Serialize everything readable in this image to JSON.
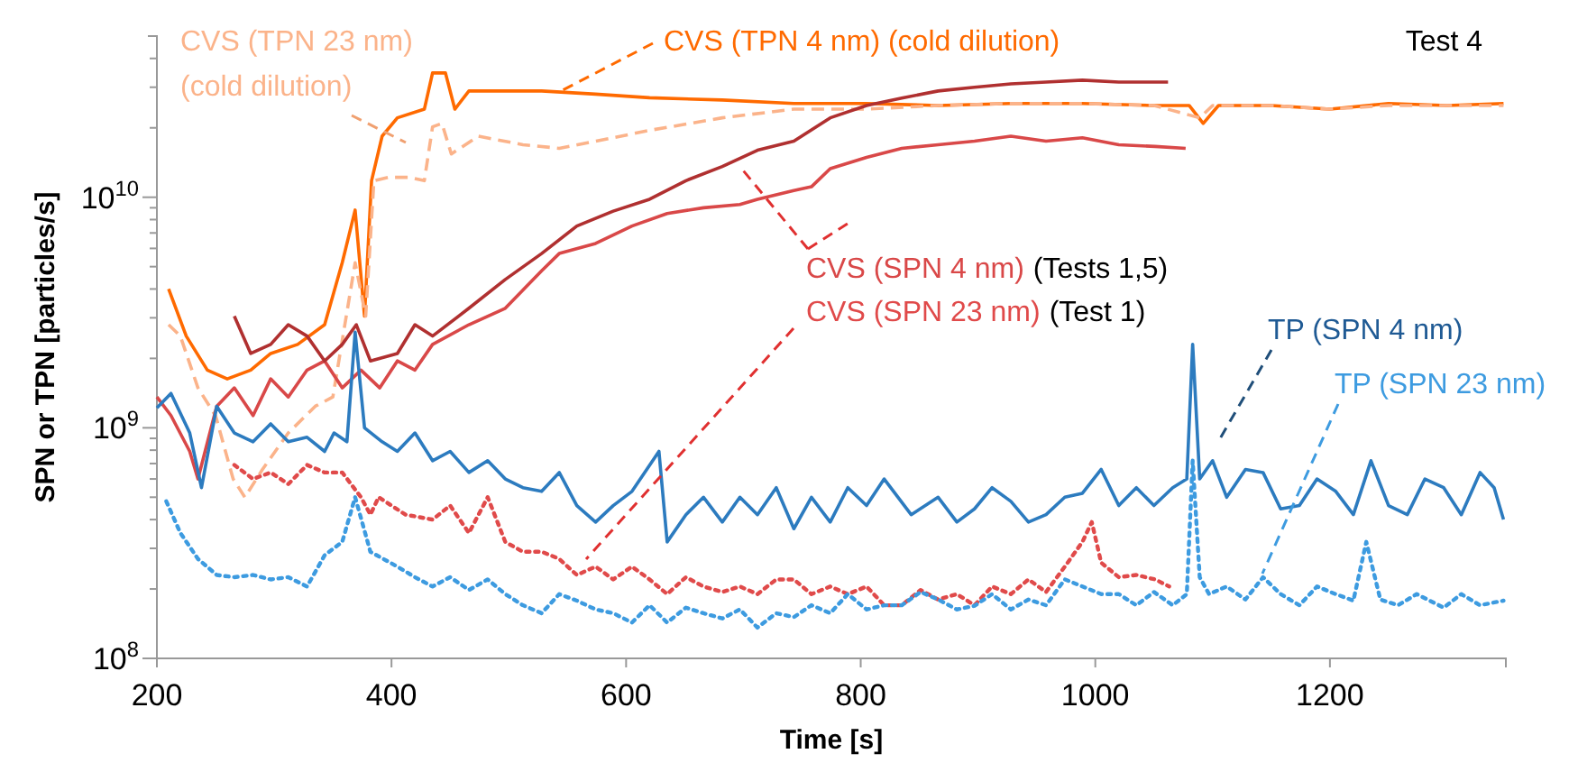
{
  "chart_data": {
    "type": "line",
    "xlabel": "Time [s]",
    "ylabel": "SPN or TPN [particles/s]",
    "log": "y",
    "xlim": [
      200,
      1350
    ],
    "xticks": [
      200,
      400,
      600,
      800,
      1000,
      1200
    ],
    "ylim": [
      100000000.0,
      50000000000.0
    ],
    "yticks": [
      {
        "value": 100000000.0,
        "label": "10$^{8}$"
      },
      {
        "value": 200000000.0,
        "label": null
      },
      {
        "value": 300000000.0,
        "label": null
      },
      {
        "value": 400000000.0,
        "label": null
      },
      {
        "value": 500000000.0,
        "label": null
      },
      {
        "value": 600000000.0,
        "label": null
      },
      {
        "value": 700000000.0,
        "label": null
      },
      {
        "value": 800000000.0,
        "label": null
      },
      {
        "value": 900000000.0,
        "label": null
      },
      {
        "value": 1000000000.0,
        "label": "10$^{9}$"
      },
      {
        "value": 2000000000.0,
        "label": null
      },
      {
        "value": 3000000000.0,
        "label": null
      },
      {
        "value": 4000000000.0,
        "label": null
      },
      {
        "value": 5000000000.0,
        "label": null
      },
      {
        "value": 6000000000.0,
        "label": null
      },
      {
        "value": 7000000000.0,
        "label": null
      },
      {
        "value": 8000000000.0,
        "label": null
      },
      {
        "value": 9000000000.0,
        "label": null
      },
      {
        "value": 10000000000.0,
        "label": "10$^{10}$"
      },
      {
        "value": 20000000000.0,
        "label": null
      },
      {
        "value": 30000000000.0,
        "label": null
      },
      {
        "value": 40000000000.0,
        "label": null
      },
      {
        "value": 50000000000.0,
        "label": null
      }
    ],
    "annotations": [
      "Test 4",
      "(Tests 1,5)",
      "(Test 1)"
    ],
    "series": [
      {
        "name": "CVS (TPN 4 nm) (cold dilution)",
        "color": "#ff6a00",
        "line_style": "solid",
        "x": [
          210,
          225,
          243,
          260,
          280,
          297,
          320,
          343,
          358,
          369,
          377,
          383,
          392,
          405,
          428,
          435,
          446,
          454,
          466,
          500,
          528,
          574,
          620,
          682,
          743,
          805,
          866,
          928,
          989,
          1050,
          1080,
          1092,
          1105,
          1150,
          1200,
          1250,
          1300,
          1348
        ],
        "values": [
          4000000000.0,
          2500000000.0,
          1780000000.0,
          1630000000.0,
          1780000000.0,
          2100000000.0,
          2300000000.0,
          2800000000.0,
          5200000000.0,
          8800000000.0,
          3050000000.0,
          11800000000.0,
          18400000000.0,
          22100000000.0,
          24100000000.0,
          34600000000.0,
          34600000000.0,
          24100000000.0,
          28900000000.0,
          28900000000.0,
          28900000000.0,
          28000000000.0,
          27000000000.0,
          26400000000.0,
          25500000000.0,
          25500000000.0,
          25000000000.0,
          25500000000.0,
          25500000000.0,
          25000000000.0,
          25000000000.0,
          20900000000.0,
          25000000000.0,
          25000000000.0,
          24100000000.0,
          25500000000.0,
          25000000000.0,
          25500000000.0
        ]
      },
      {
        "name": "CVS (TPN 23 nm) (cold dilution)",
        "color": "#fbb38a",
        "line_style": "dashed",
        "x": [
          210,
          220,
          235,
          250,
          265,
          275,
          290,
          312,
          335,
          350,
          369,
          378,
          385,
          397,
          415,
          428,
          435,
          443,
          451,
          474,
          512,
          543,
          574,
          620,
          682,
          743,
          805,
          866,
          928,
          989,
          1050,
          1089,
          1100,
          1150,
          1200,
          1250,
          1300,
          1348
        ],
        "values": [
          2800000000.0,
          2500000000.0,
          1490000000.0,
          1130000000.0,
          600000000.0,
          500000000.0,
          660000000.0,
          950000000.0,
          1240000000.0,
          1360000000.0,
          5200000000.0,
          3050000000.0,
          11800000000.0,
          12200000000.0,
          12200000000.0,
          11800000000.0,
          20200000000.0,
          20900000000.0,
          15400000000.0,
          18400000000.0,
          16900000000.0,
          16300000000.0,
          17500000000.0,
          19500000000.0,
          22100000000.0,
          24100000000.0,
          24100000000.0,
          25000000000.0,
          25500000000.0,
          25500000000.0,
          25000000000.0,
          22100000000.0,
          25000000000.0,
          25000000000.0,
          24100000000.0,
          25000000000.0,
          25000000000.0,
          25000000000.0
        ]
      },
      {
        "name": "CVS (SPN 4 nm)",
        "color": "#d94848",
        "line_style": "solid",
        "x": [
          200,
          212,
          228,
          235,
          251,
          266,
          282,
          297,
          312,
          328,
          343,
          358,
          374,
          390,
          405,
          420,
          435,
          466,
          497,
          528,
          543,
          574,
          605,
          635,
          666,
          697,
          712,
          743,
          758,
          774,
          805,
          835,
          866,
          897,
          928,
          958,
          989,
          1020,
          1051,
          1077
        ],
        "values": [
          1360000000.0,
          1130000000.0,
          790000000.0,
          600000000.0,
          1240000000.0,
          1490000000.0,
          1130000000.0,
          1630000000.0,
          1360000000.0,
          1780000000.0,
          1950000000.0,
          1490000000.0,
          1780000000.0,
          1490000000.0,
          1950000000.0,
          1780000000.0,
          2300000000.0,
          2800000000.0,
          3300000000.0,
          4800000000.0,
          5700000000.0,
          6300000000.0,
          7500000000.0,
          8500000000.0,
          9000000000.0,
          9300000000.0,
          9800000000.0,
          10700000000.0,
          11100000000.0,
          13300000000.0,
          14900000000.0,
          16300000000.0,
          16900000000.0,
          17500000000.0,
          18400000000.0,
          17500000000.0,
          18100000000.0,
          16900000000.0,
          16600000000.0,
          16300000000.0
        ]
      },
      {
        "color": "#b03030",
        "line_style": "solid",
        "x": [
          266,
          280,
          297,
          312,
          328,
          343,
          358,
          370,
          382,
          405,
          420,
          435,
          466,
          497,
          528,
          558,
          589,
          620,
          651,
          682,
          712,
          743,
          774,
          805,
          835,
          866,
          897,
          928,
          958,
          989,
          1020,
          1062
        ],
        "values": [
          3050000000.0,
          2100000000.0,
          2300000000.0,
          2800000000.0,
          2500000000.0,
          1950000000.0,
          2300000000.0,
          2800000000.0,
          1950000000.0,
          2100000000.0,
          2800000000.0,
          2500000000.0,
          3300000000.0,
          4400000000.0,
          5700000000.0,
          7500000000.0,
          8700000000.0,
          9800000000.0,
          11800000000.0,
          13600000000.0,
          16000000000.0,
          17500000000.0,
          22100000000.0,
          25000000000.0,
          26900000000.0,
          28900000000.0,
          30000000000.0,
          31000000000.0,
          31600000000.0,
          32200000000.0,
          31600000000.0,
          31600000000.0
        ]
      },
      {
        "name": "CVS (SPN 23 nm)",
        "color": "#e04a4a",
        "line_style": "dotted",
        "x": [
          266,
          282,
          297,
          312,
          328,
          343,
          358,
          374,
          382,
          389,
          412,
          435,
          450,
          466,
          482,
          497,
          512,
          528,
          543,
          558,
          574,
          589,
          605,
          620,
          635,
          651,
          666,
          682,
          697,
          712,
          728,
          743,
          758,
          774,
          789,
          805,
          820,
          835,
          851,
          866,
          882,
          897,
          912,
          928,
          943,
          958,
          974,
          989,
          997,
          1005,
          1020,
          1035,
          1051,
          1063
        ],
        "values": [
          690000000.0,
          600000000.0,
          640000000.0,
          570000000.0,
          690000000.0,
          640000000.0,
          640000000.0,
          500000000.0,
          420000000.0,
          500000000.0,
          420000000.0,
          400000000.0,
          460000000.0,
          350000000.0,
          500000000.0,
          320000000.0,
          290000000.0,
          290000000.0,
          270000000.0,
          230000000.0,
          250000000.0,
          220000000.0,
          250000000.0,
          220000000.0,
          190000000.0,
          225000000.0,
          205000000.0,
          194000000.0,
          205000000.0,
          190000000.0,
          220000000.0,
          220000000.0,
          190000000.0,
          205000000.0,
          190000000.0,
          205000000.0,
          170000000.0,
          170000000.0,
          198000000.0,
          180000000.0,
          190000000.0,
          170000000.0,
          205000000.0,
          190000000.0,
          220000000.0,
          194000000.0,
          250000000.0,
          320000000.0,
          390000000.0,
          260000000.0,
          225000000.0,
          230000000.0,
          220000000.0,
          205000000.0
        ]
      },
      {
        "name": "TP (SPN 4 nm)",
        "color": "#2c7bbf",
        "line_style": "solid",
        "x": [
          200,
          212,
          228,
          238,
          251,
          266,
          282,
          297,
          312,
          328,
          343,
          351,
          362,
          369,
          377,
          392,
          405,
          420,
          435,
          450,
          466,
          482,
          497,
          512,
          528,
          543,
          558,
          574,
          589,
          605,
          628,
          635,
          651,
          666,
          682,
          697,
          712,
          728,
          743,
          758,
          774,
          789,
          805,
          820,
          843,
          866,
          882,
          897,
          912,
          928,
          943,
          958,
          974,
          989,
          1005,
          1020,
          1035,
          1050,
          1066,
          1078,
          1083,
          1089,
          1100,
          1112,
          1128,
          1143,
          1158,
          1174,
          1189,
          1205,
          1220,
          1235,
          1250,
          1266,
          1281,
          1297,
          1312,
          1328,
          1340,
          1348
        ],
        "values": [
          1220000000.0,
          1410000000.0,
          950000000.0,
          550000000.0,
          1240000000.0,
          950000000.0,
          870000000.0,
          1040000000.0,
          870000000.0,
          910000000.0,
          790000000.0,
          950000000.0,
          870000000.0,
          2600000000.0,
          1000000000.0,
          870000000.0,
          790000000.0,
          950000000.0,
          720000000.0,
          790000000.0,
          640000000.0,
          720000000.0,
          600000000.0,
          550000000.0,
          530000000.0,
          640000000.0,
          460000000.0,
          390000000.0,
          460000000.0,
          530000000.0,
          790000000.0,
          320000000.0,
          420000000.0,
          500000000.0,
          390000000.0,
          500000000.0,
          420000000.0,
          550000000.0,
          365000000.0,
          500000000.0,
          390000000.0,
          550000000.0,
          460000000.0,
          600000000.0,
          420000000.0,
          500000000.0,
          390000000.0,
          445000000.0,
          550000000.0,
          480000000.0,
          390000000.0,
          420000000.0,
          500000000.0,
          520000000.0,
          660000000.0,
          460000000.0,
          550000000.0,
          460000000.0,
          550000000.0,
          600000000.0,
          2300000000.0,
          600000000.0,
          720000000.0,
          500000000.0,
          660000000.0,
          640000000.0,
          445000000.0,
          460000000.0,
          600000000.0,
          530000000.0,
          420000000.0,
          720000000.0,
          460000000.0,
          420000000.0,
          600000000.0,
          550000000.0,
          420000000.0,
          640000000.0,
          550000000.0,
          400000000.0
        ]
      },
      {
        "name": "TP (SPN 23 nm)",
        "color": "#3d9be0",
        "line_style": "dotted",
        "x": [
          208,
          220,
          235,
          251,
          266,
          282,
          297,
          312,
          328,
          343,
          358,
          369,
          382,
          405,
          420,
          435,
          450,
          466,
          482,
          497,
          512,
          528,
          543,
          558,
          574,
          589,
          605,
          620,
          635,
          651,
          666,
          682,
          697,
          712,
          728,
          743,
          758,
          774,
          789,
          805,
          820,
          835,
          851,
          866,
          882,
          897,
          912,
          928,
          943,
          958,
          974,
          989,
          1005,
          1020,
          1035,
          1050,
          1066,
          1078,
          1083,
          1089,
          1097,
          1112,
          1128,
          1143,
          1158,
          1174,
          1189,
          1205,
          1220,
          1231,
          1243,
          1258,
          1274,
          1297,
          1312,
          1328,
          1348
        ],
        "values": [
          480000000.0,
          350000000.0,
          270000000.0,
          230000000.0,
          225000000.0,
          230000000.0,
          220000000.0,
          225000000.0,
          205000000.0,
          280000000.0,
          320000000.0,
          500000000.0,
          290000000.0,
          250000000.0,
          225000000.0,
          205000000.0,
          225000000.0,
          198000000.0,
          220000000.0,
          190000000.0,
          170000000.0,
          157000000.0,
          190000000.0,
          178000000.0,
          163000000.0,
          157000000.0,
          143000000.0,
          170000000.0,
          143000000.0,
          166000000.0,
          157000000.0,
          149000000.0,
          163000000.0,
          136000000.0,
          157000000.0,
          151000000.0,
          170000000.0,
          157000000.0,
          190000000.0,
          163000000.0,
          170000000.0,
          170000000.0,
          194000000.0,
          180000000.0,
          163000000.0,
          169000000.0,
          190000000.0,
          163000000.0,
          180000000.0,
          170000000.0,
          220000000.0,
          205000000.0,
          190000000.0,
          190000000.0,
          170000000.0,
          194000000.0,
          170000000.0,
          190000000.0,
          720000000.0,
          225000000.0,
          190000000.0,
          205000000.0,
          180000000.0,
          225000000.0,
          190000000.0,
          170000000.0,
          205000000.0,
          190000000.0,
          178000000.0,
          320000000.0,
          180000000.0,
          170000000.0,
          190000000.0,
          166000000.0,
          190000000.0,
          170000000.0,
          178000000.0
        ]
      }
    ]
  }
}
